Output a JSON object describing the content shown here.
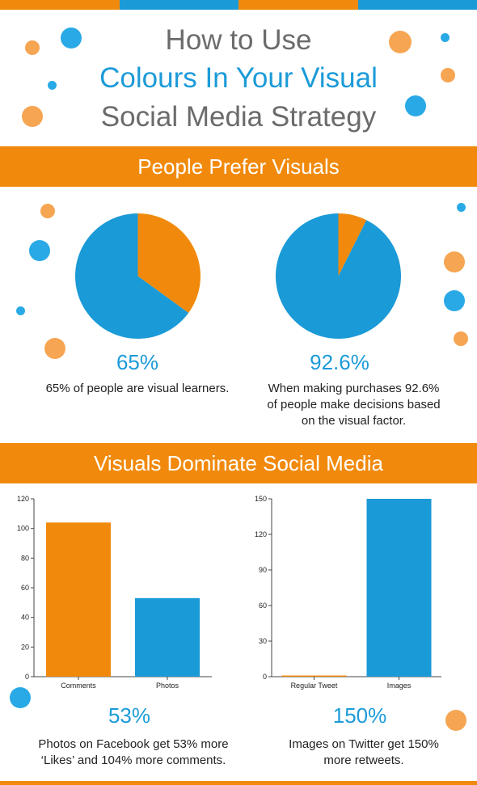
{
  "colors": {
    "orange": "#f18a0c",
    "blue": "#1a9ad7",
    "title_grey": "#6b6b6b",
    "title_blue": "#1c9bd8"
  },
  "header": {
    "line1": "How to Use",
    "line2": "Colours In Your Visual",
    "line3": "Social Media Strategy"
  },
  "section1": {
    "title": "People Prefer Visuals"
  },
  "section2": {
    "title": "Visuals Dominate Social Media"
  },
  "chart_data": [
    {
      "type": "pie",
      "slices": [
        {
          "label": "visual learners",
          "value": 65,
          "color": "#1a9ad7"
        },
        {
          "label": "other",
          "value": 35,
          "color": "#f18a0c"
        }
      ],
      "stat": "65%",
      "caption": "65% of people are visual learners."
    },
    {
      "type": "pie",
      "slices": [
        {
          "label": "visual factor",
          "value": 92.6,
          "color": "#1a9ad7"
        },
        {
          "label": "other",
          "value": 7.4,
          "color": "#f18a0c"
        }
      ],
      "stat": "92.6%",
      "caption": "When making purchases 92.6% of people make decisions based on the visual factor."
    },
    {
      "type": "bar",
      "categories": [
        "Comments",
        "Photos"
      ],
      "values": [
        104,
        53
      ],
      "colors": [
        "#f18a0c",
        "#1a9ad7"
      ],
      "ylim": [
        0,
        120
      ],
      "yticks": [
        0,
        20,
        40,
        60,
        80,
        100,
        120
      ],
      "stat": "53%",
      "caption": "Photos on Facebook get 53% more ‘Likes’ and 104% more comments."
    },
    {
      "type": "bar",
      "categories": [
        "Regular Tweet",
        "Images"
      ],
      "values": [
        1,
        150
      ],
      "colors": [
        "#f18a0c",
        "#1a9ad7"
      ],
      "ylim": [
        0,
        150
      ],
      "yticks": [
        0,
        30,
        60,
        90,
        120,
        150
      ],
      "stat": "150%",
      "caption": "Images on Twitter get 150% more retweets."
    }
  ]
}
